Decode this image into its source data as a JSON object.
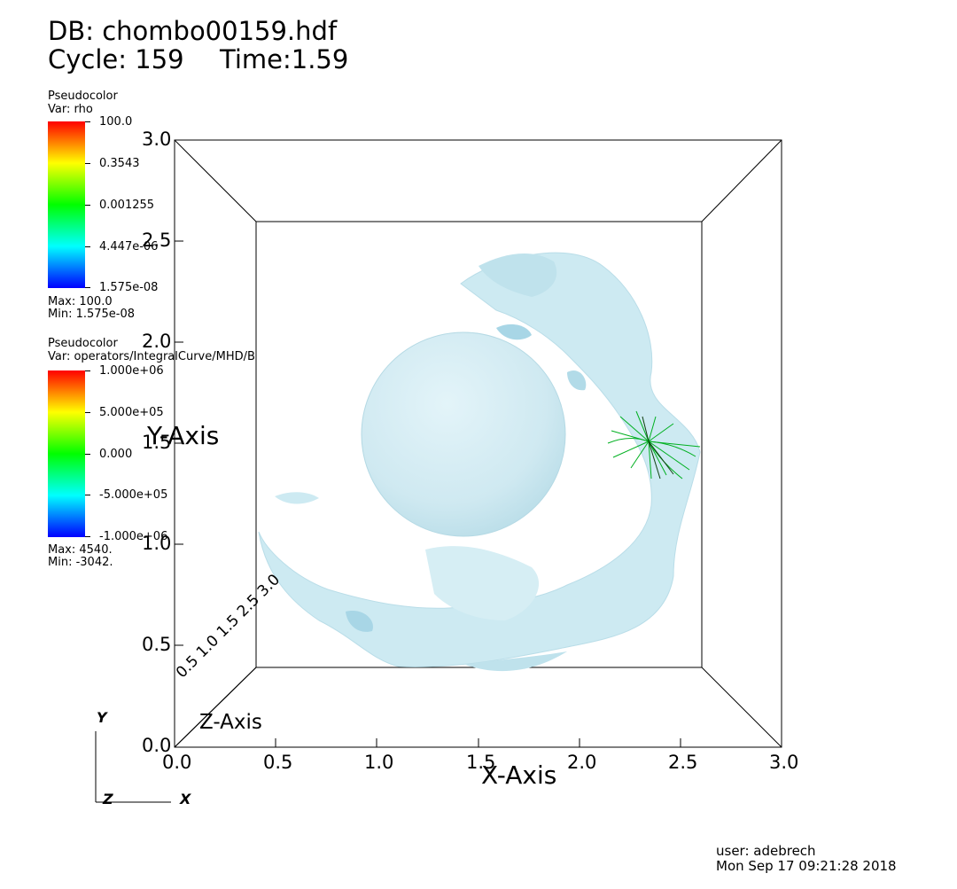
{
  "header": {
    "db": "DB: chombo00159.hdf",
    "cycle": "Cycle: 159",
    "time": "Time:1.59"
  },
  "legends": [
    {
      "title": "Pseudocolor",
      "var": "Var: rho",
      "ticks": [
        "100.0",
        "0.3543",
        "0.001255",
        "4.447e-06",
        "1.575e-08"
      ],
      "max": "Max:  100.0",
      "min": "Min:  1.575e-08"
    },
    {
      "title": "Pseudocolor",
      "var": "Var: operators/IntegralCurve/MHD/B",
      "ticks": [
        "1.000e+06",
        "5.000e+05",
        "0.000",
        "-5.000e+05",
        "-1.000e+06"
      ],
      "max": "Max:  4540.",
      "min": "Min: -3042."
    }
  ],
  "axes": {
    "x_title": "X-Axis",
    "y_title": "Y-Axis",
    "z_title": "Z-Axis",
    "x_ticks": [
      "0.0",
      "0.5",
      "1.0",
      "1.5",
      "2.0",
      "2.5",
      "3.0"
    ],
    "y_ticks": [
      "3.0",
      "2.5",
      "2.0",
      "1.5",
      "1.0",
      "0.5",
      "0.0"
    ],
    "z_ticks_garbled": [
      "0.5",
      "1.0",
      "1.5",
      "2.5",
      "3.0"
    ]
  },
  "triad": {
    "y": "Y",
    "z": "Z",
    "x": "X"
  },
  "footer": {
    "user": "user: adebrech",
    "date": "Mon Sep 17 09:21:28 2018"
  },
  "colors": {
    "surface": "#cdeaf2",
    "surface_dark": "#a8d6e6",
    "sphere": "#d2ecf4",
    "streamlines": "#00b020",
    "colormap": [
      "#ff0000",
      "#ffff00",
      "#00ff00",
      "#00ffff",
      "#0000ff"
    ]
  }
}
